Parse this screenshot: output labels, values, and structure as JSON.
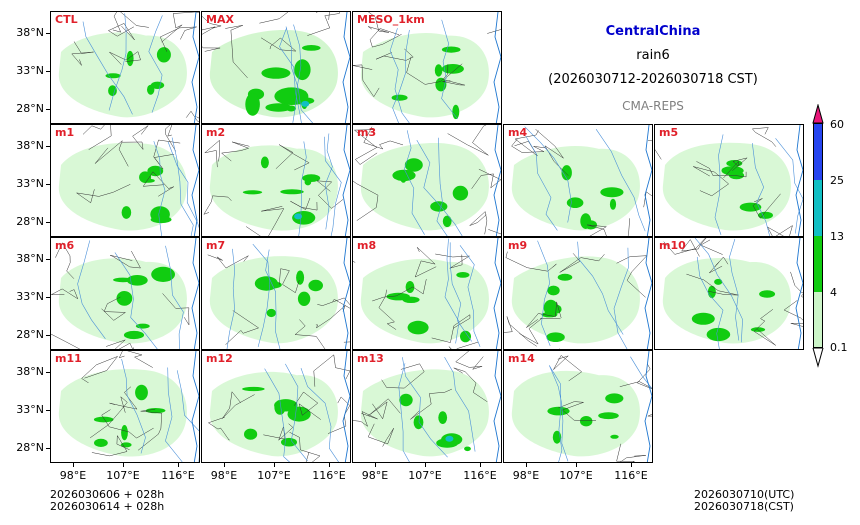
{
  "title": {
    "region": "CentralChina",
    "variable": "rain6",
    "period": "(2026030712-2026030718 CST)",
    "source": "CMA-REPS"
  },
  "panels": [
    "CTL",
    "MAX",
    "MESO_1km",
    "m1",
    "m2",
    "m3",
    "m4",
    "m5",
    "m6",
    "m7",
    "m8",
    "m9",
    "m10",
    "m11",
    "m12",
    "m13",
    "m14"
  ],
  "axes": {
    "lat_labels": [
      "38°N",
      "33°N",
      "28°N"
    ],
    "lon_labels": [
      "98°E",
      "107°E",
      "116°E"
    ]
  },
  "colorbar": {
    "levels": [
      "0.1",
      "4",
      "13",
      "25",
      "60"
    ],
    "colors": [
      "#ccf5c8",
      "#11cc11",
      "#11bfc4",
      "#2645f0"
    ],
    "under_color": "#ffffff",
    "over_color": "#e8167a"
  },
  "footer": {
    "init_line1": "2026030606  +  028h",
    "init_line2": "2026030614  +  028h",
    "valid_utc": "2026030710(UTC)",
    "valid_cst": "2026030718(CST)"
  },
  "colors": {
    "title_blue": "#0000cc",
    "label_red": "#e0202a",
    "light_rain": "#ccf5c8",
    "moderate_rain": "#11cc11",
    "heavy_rain": "#11bfc4",
    "source_gray": "#808080"
  }
}
